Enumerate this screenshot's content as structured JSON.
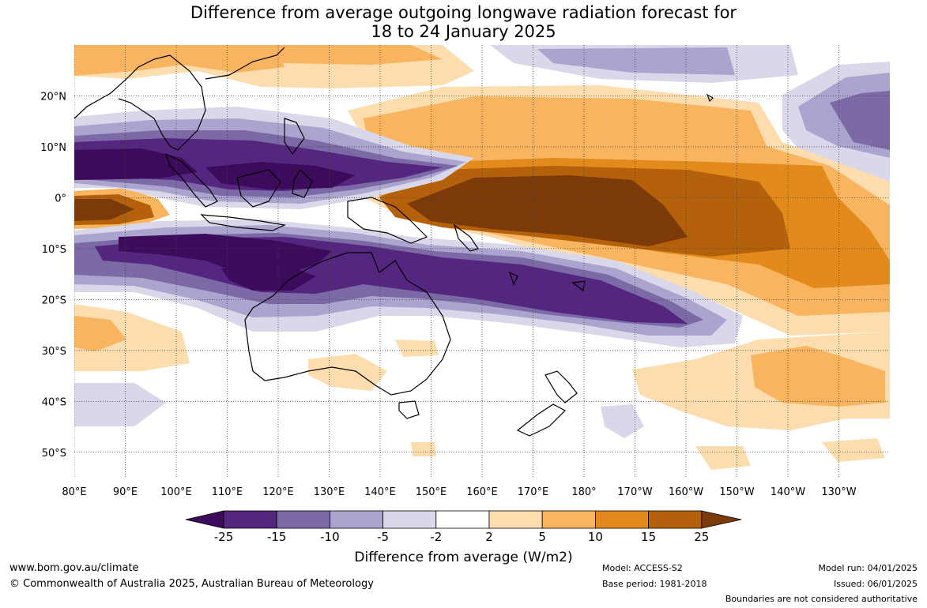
{
  "title": {
    "line1": "Difference from average outgoing longwave radiation forecast for",
    "line2": "18 to 24 January 2025"
  },
  "map": {
    "lon_labels": [
      "80°E",
      "90°E",
      "100°E",
      "110°E",
      "120°E",
      "130°E",
      "140°E",
      "150°E",
      "160°E",
      "170°E",
      "180°",
      "170°W",
      "160°W",
      "150°W",
      "140°W",
      "130°W"
    ],
    "lat_labels": [
      "20°N",
      "10°N",
      "0°",
      "10°S",
      "20°S",
      "30°S",
      "40°S",
      "50°S"
    ],
    "lon_range": [
      80,
      240
    ],
    "lat_range": [
      -55,
      30
    ]
  },
  "colorbar": {
    "ticks": [
      "-25",
      "-15",
      "-10",
      "-5",
      "-2",
      "2",
      "5",
      "10",
      "15",
      "25"
    ],
    "colors": [
      "#3c0b5c",
      "#55267f",
      "#7b6aa6",
      "#aaa4ce",
      "#d9d8ea",
      "#ffffff",
      "#fddcad",
      "#f9b45f",
      "#e28a1c",
      "#b5600b",
      "#7c3a09"
    ],
    "label": "Difference from average (W/m2)"
  },
  "footer": {
    "url": "www.bom.gov.au/climate",
    "copyright": "© Commonwealth of Australia 2025, Australian Bureau of Meteorology",
    "model": "Model: ACCESS-S2",
    "base_period": "Base period: 1981-2018",
    "model_run": "Model run: 04/01/2025",
    "issued": "Issued: 06/01/2025",
    "disclaimer": "Boundaries are not considered authoritative"
  }
}
